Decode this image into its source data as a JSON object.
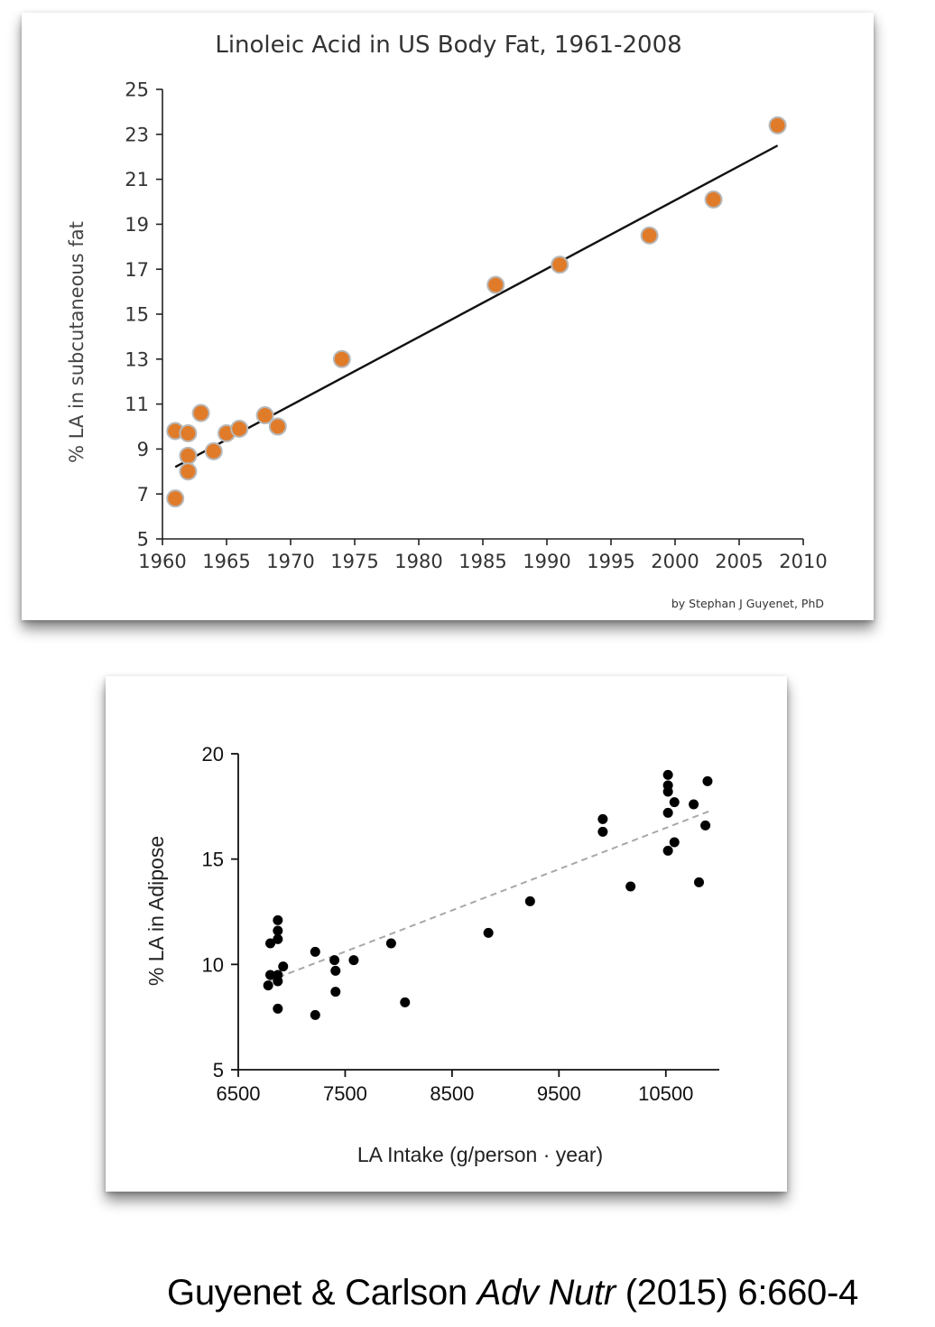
{
  "chart_data": [
    {
      "type": "scatter",
      "title": "Linoleic Acid in US Body Fat, 1961-2008",
      "xlabel": "",
      "ylabel": "% LA in subcutaneous fat",
      "xlim": [
        1960,
        2010
      ],
      "ylim": [
        5,
        25
      ],
      "xticks": [
        1960,
        1965,
        1970,
        1975,
        1980,
        1985,
        1990,
        1995,
        2000,
        2005,
        2010
      ],
      "yticks": [
        5,
        7,
        9,
        11,
        13,
        15,
        17,
        19,
        21,
        23,
        25
      ],
      "grid": false,
      "marker_color": "#e07b2a",
      "credit": "by Stephan J Guyenet, PhD",
      "series": [
        {
          "points": [
            {
              "x": 1961,
              "y": 9.8
            },
            {
              "x": 1961,
              "y": 6.8
            },
            {
              "x": 1962,
              "y": 9.7
            },
            {
              "x": 1962,
              "y": 8.7
            },
            {
              "x": 1962,
              "y": 8.0
            },
            {
              "x": 1963,
              "y": 10.6
            },
            {
              "x": 1964,
              "y": 8.9
            },
            {
              "x": 1965,
              "y": 9.7
            },
            {
              "x": 1966,
              "y": 9.9
            },
            {
              "x": 1968,
              "y": 10.5
            },
            {
              "x": 1969,
              "y": 10.0
            },
            {
              "x": 1974,
              "y": 13.0
            },
            {
              "x": 1986,
              "y": 16.3
            },
            {
              "x": 1991,
              "y": 17.2
            },
            {
              "x": 1998,
              "y": 18.5
            },
            {
              "x": 2003,
              "y": 20.1
            },
            {
              "x": 2008,
              "y": 23.4
            }
          ]
        }
      ],
      "trendline": {
        "x": [
          1961,
          2008
        ],
        "y": [
          8.2,
          22.5
        ]
      }
    },
    {
      "type": "scatter",
      "title": "",
      "xlabel": "LA Intake (g/person · year)",
      "ylabel": "% LA in Adipose",
      "xlim": [
        6500,
        11000
      ],
      "ylim": [
        5,
        20
      ],
      "xticks": [
        6500,
        7500,
        8500,
        9500,
        10500
      ],
      "yticks": [
        5,
        10,
        15,
        20
      ],
      "grid": false,
      "marker_color": "#000000",
      "series": [
        {
          "points": [
            {
              "x": 6780,
              "y": 9.0
            },
            {
              "x": 6800,
              "y": 11.0
            },
            {
              "x": 6800,
              "y": 9.5
            },
            {
              "x": 6870,
              "y": 12.1
            },
            {
              "x": 6870,
              "y": 11.6
            },
            {
              "x": 6870,
              "y": 11.2
            },
            {
              "x": 6870,
              "y": 9.5
            },
            {
              "x": 6870,
              "y": 9.2
            },
            {
              "x": 6870,
              "y": 7.9
            },
            {
              "x": 6920,
              "y": 9.9
            },
            {
              "x": 7220,
              "y": 10.6
            },
            {
              "x": 7220,
              "y": 7.6
            },
            {
              "x": 7400,
              "y": 10.2
            },
            {
              "x": 7410,
              "y": 9.7
            },
            {
              "x": 7410,
              "y": 8.7
            },
            {
              "x": 7580,
              "y": 10.2
            },
            {
              "x": 7930,
              "y": 11.0
            },
            {
              "x": 8060,
              "y": 8.2
            },
            {
              "x": 8840,
              "y": 11.5
            },
            {
              "x": 9230,
              "y": 13.0
            },
            {
              "x": 9910,
              "y": 16.9
            },
            {
              "x": 9910,
              "y": 16.3
            },
            {
              "x": 10170,
              "y": 13.7
            },
            {
              "x": 10520,
              "y": 19.0
            },
            {
              "x": 10520,
              "y": 18.5
            },
            {
              "x": 10520,
              "y": 18.2
            },
            {
              "x": 10520,
              "y": 17.2
            },
            {
              "x": 10520,
              "y": 15.4
            },
            {
              "x": 10580,
              "y": 17.7
            },
            {
              "x": 10580,
              "y": 15.8
            },
            {
              "x": 10760,
              "y": 17.6
            },
            {
              "x": 10810,
              "y": 13.9
            },
            {
              "x": 10870,
              "y": 16.6
            },
            {
              "x": 10890,
              "y": 18.7
            }
          ]
        }
      ],
      "trendline": {
        "x": [
          6780,
          10920
        ],
        "y": [
          9.2,
          17.3
        ]
      }
    }
  ],
  "citation": {
    "authors": "Guyenet & Carlson",
    "journal": "Adv Nutr",
    "details": "(2015) 6:660-4"
  }
}
